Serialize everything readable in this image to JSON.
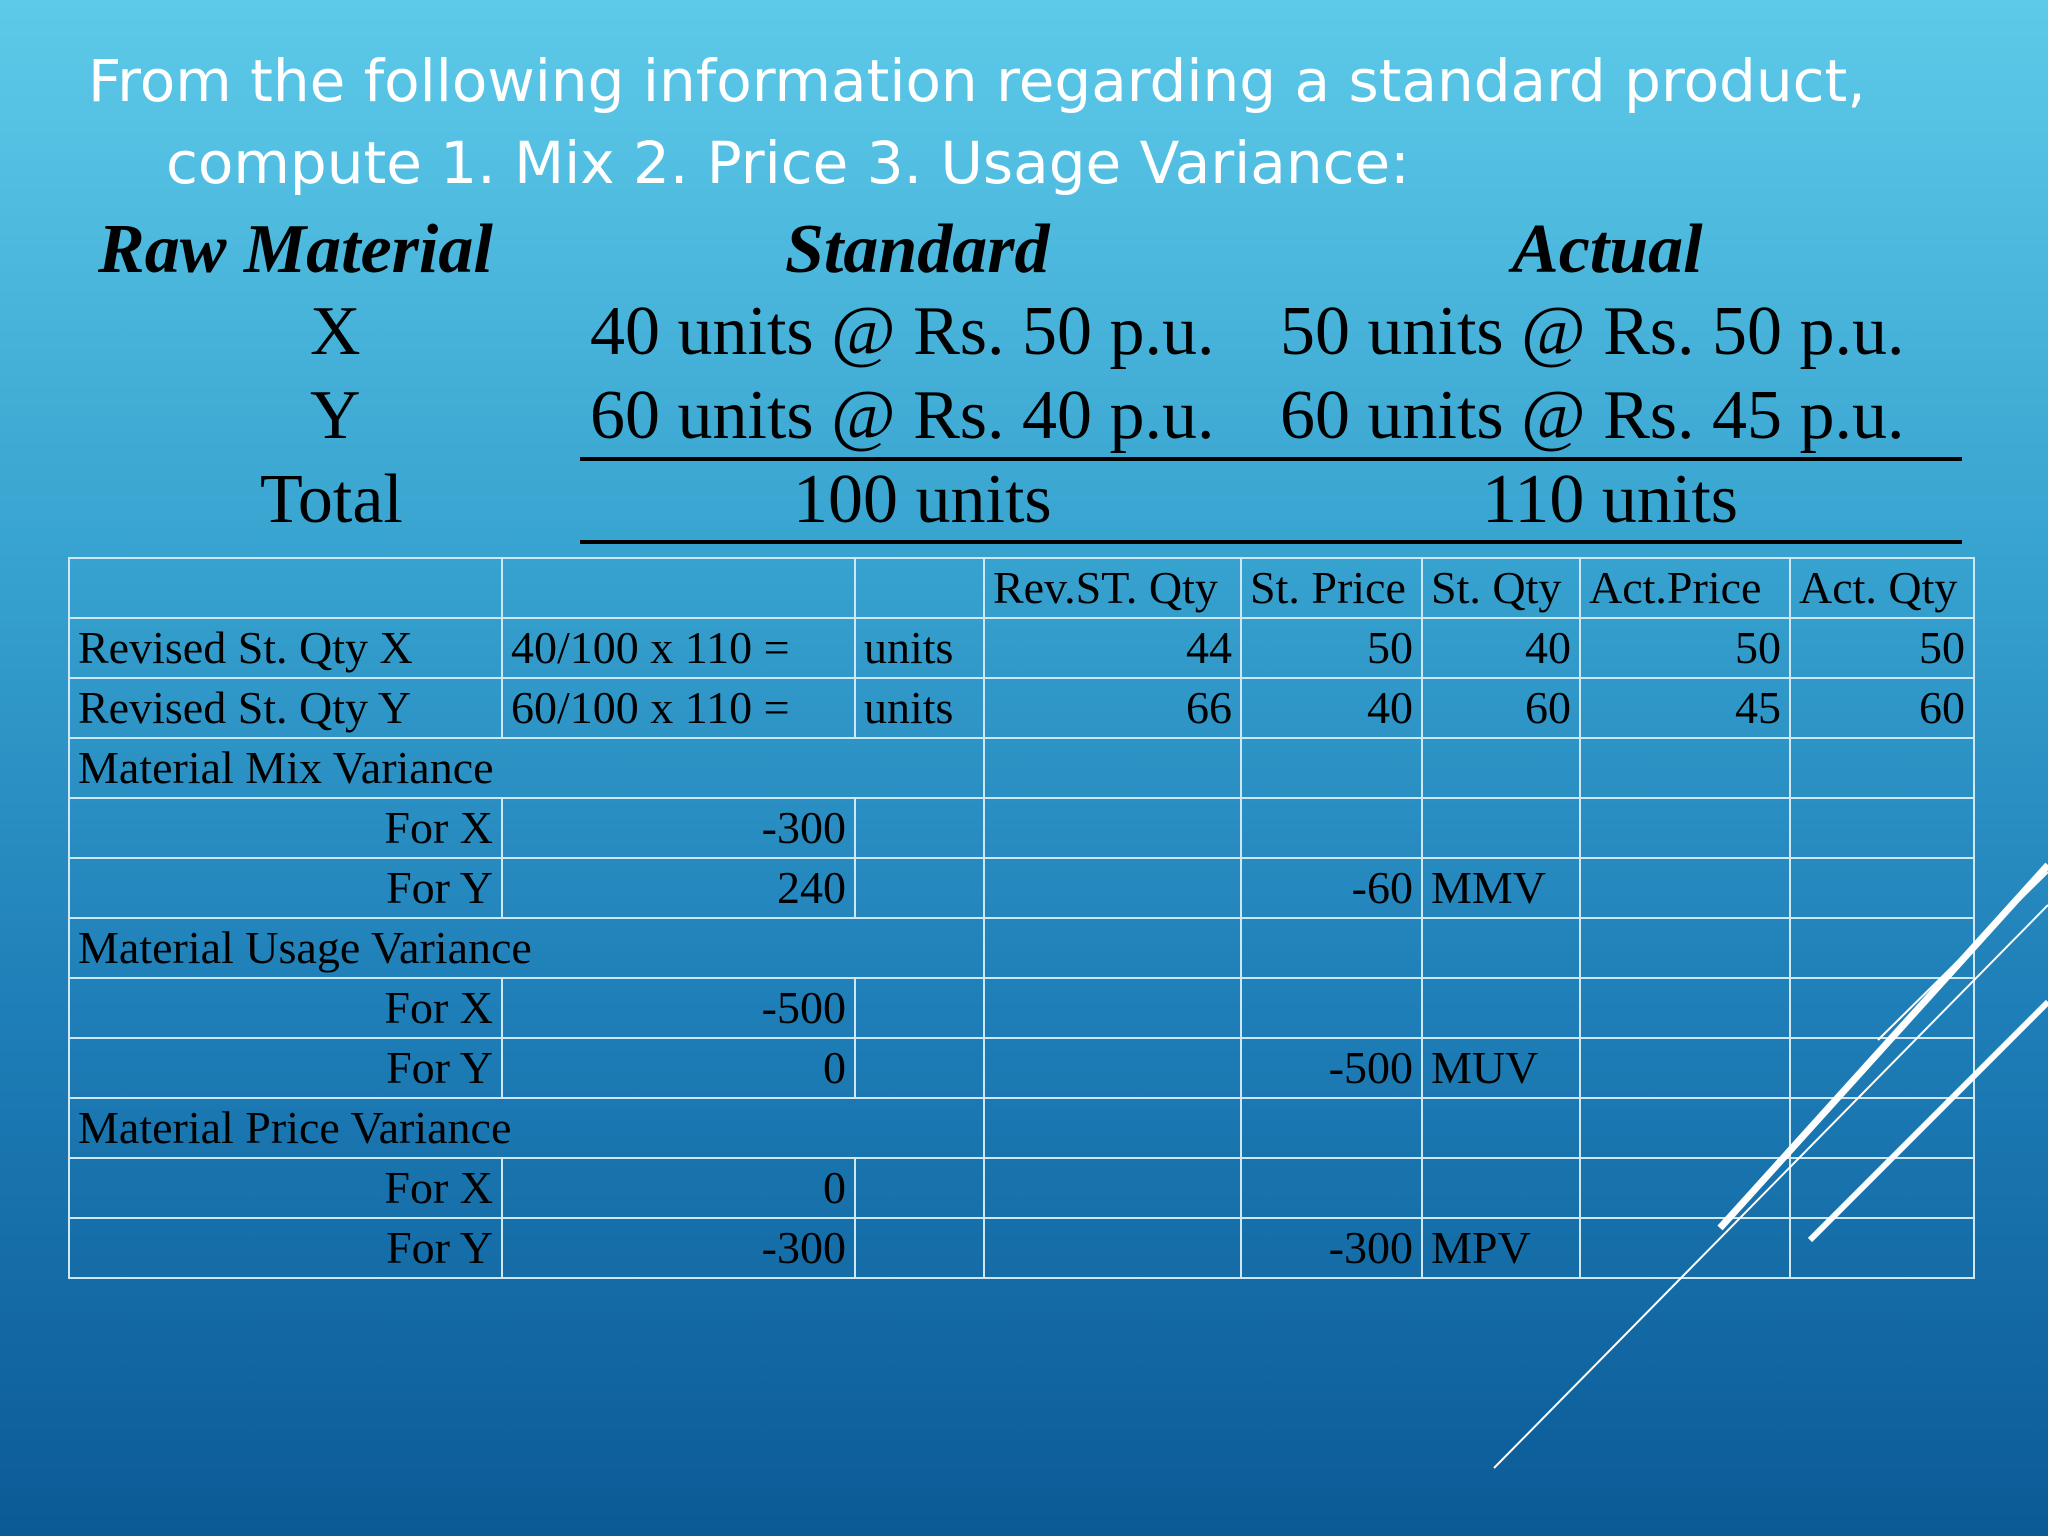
{
  "intro": {
    "line1": "From the following information regarding a standard product,",
    "line2": "compute 1. Mix 2. Price 3. Usage Variance:"
  },
  "summary": {
    "headers": {
      "material": "Raw Material",
      "standard": "Standard",
      "actual": "Actual"
    },
    "rows": [
      {
        "name": "X",
        "standard": "40 units @ Rs. 50 p.u.",
        "actual": "50 units @ Rs. 50 p.u."
      },
      {
        "name": "Y",
        "standard": "60 units @ Rs. 40 p.u.",
        "actual": "60 units @ Rs. 45 p.u."
      },
      {
        "name": "Total",
        "standard": "100 units",
        "actual": "110 units"
      }
    ]
  },
  "grid": {
    "header": [
      "",
      "",
      "",
      "Rev.ST. Qty",
      "St. Price",
      "St. Qty",
      "Act.Price",
      "Act. Qty"
    ],
    "rev_x": [
      "Revised St. Qty X",
      "40/100 x 110 =",
      "units",
      "44",
      "50",
      "40",
      "50",
      "50"
    ],
    "rev_y": [
      "Revised St. Qty Y",
      "60/100 x 110 =",
      "units",
      "66",
      "40",
      "60",
      "45",
      "60"
    ],
    "mix_title": "Material Mix Variance",
    "mix_x": [
      "For X",
      "-300"
    ],
    "mix_y": [
      "For Y",
      "240",
      "-60",
      "MMV"
    ],
    "usage_title": "Material Usage Variance",
    "usage_x": [
      "For X",
      "-500"
    ],
    "usage_y": [
      "For Y",
      "0",
      "-500",
      "MUV"
    ],
    "price_title": "Material Price Variance",
    "price_x": [
      "For X",
      "0"
    ],
    "price_y": [
      "For Y",
      "-300",
      "-300",
      "MPV"
    ]
  },
  "colors": {
    "background_top": "#5ecae9",
    "background_bottom": "#0b5a96",
    "grid_lines": "#cfe6f3",
    "intro_text": "#ffffff"
  }
}
